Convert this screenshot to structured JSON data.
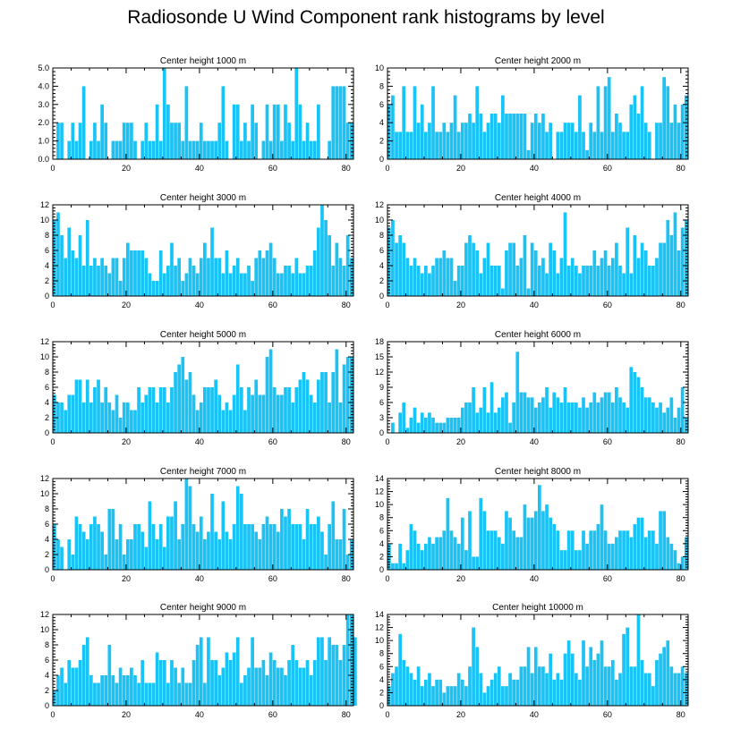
{
  "title": "Radiosonde U Wind Component rank histograms by level",
  "bar_color": "#19c3f5",
  "chart_data": [
    {
      "type": "bar",
      "title": "Center height 1000 m",
      "xlim": [
        0,
        82
      ],
      "ylim": [
        0,
        5
      ],
      "yticks": [
        0,
        1,
        2,
        3,
        4,
        5
      ],
      "ytick_labels": [
        "0.0",
        "1.0",
        "2.0",
        "3.0",
        "4.0",
        "5.0"
      ],
      "xticks": [
        0,
        20,
        40,
        60,
        80
      ],
      "values": [
        0,
        2,
        2,
        0,
        1,
        2,
        1,
        2,
        4,
        0,
        1,
        2,
        1,
        3,
        2,
        0,
        1,
        1,
        1,
        2,
        2,
        2,
        1,
        0,
        1,
        2,
        1,
        1,
        3,
        1,
        5,
        3,
        2,
        2,
        2,
        1,
        4,
        1,
        1,
        1,
        2,
        1,
        1,
        1,
        1,
        2,
        4,
        1,
        0,
        3,
        3,
        1,
        2,
        1,
        3,
        2,
        0,
        1,
        3,
        1,
        3,
        3,
        1,
        3,
        2,
        1,
        5,
        3,
        1,
        2,
        1,
        1,
        3,
        0,
        0,
        1,
        4,
        4,
        4,
        4,
        2,
        2
      ]
    },
    {
      "type": "bar",
      "title": "Center height 2000 m",
      "xlim": [
        0,
        82
      ],
      "ylim": [
        0,
        10
      ],
      "yticks": [
        0,
        2,
        4,
        6,
        8,
        10
      ],
      "ytick_labels": [
        "0",
        "2",
        "4",
        "6",
        "8",
        "10"
      ],
      "xticks": [
        0,
        20,
        40,
        60,
        80
      ],
      "values": [
        6,
        7,
        3,
        3,
        8,
        3,
        3,
        8,
        4,
        6,
        3,
        4,
        8,
        3,
        3,
        4,
        3,
        4,
        7,
        3,
        4,
        4,
        5,
        4,
        8,
        5,
        3,
        4,
        5,
        5,
        4,
        7,
        5,
        5,
        5,
        5,
        5,
        5,
        1,
        4,
        5,
        4,
        5,
        3,
        4,
        0,
        3,
        3,
        4,
        4,
        4,
        3,
        7,
        3,
        1,
        4,
        3,
        8,
        3,
        8,
        9,
        3,
        5,
        4,
        3,
        3,
        6,
        7,
        5,
        8,
        4,
        3,
        0,
        4,
        4,
        9,
        8,
        4,
        6,
        4,
        6,
        7
      ]
    },
    {
      "type": "bar",
      "title": "Center height 3000 m",
      "xlim": [
        0,
        82
      ],
      "ylim": [
        0,
        12
      ],
      "yticks": [
        0,
        2,
        4,
        6,
        8,
        10,
        12
      ],
      "ytick_labels": [
        "0",
        "2",
        "4",
        "6",
        "8",
        "10",
        "12"
      ],
      "xticks": [
        0,
        20,
        40,
        60,
        80
      ],
      "values": [
        10,
        11,
        8,
        5,
        9,
        6,
        5,
        8,
        4,
        10,
        4,
        5,
        4,
        5,
        4,
        3,
        5,
        5,
        2,
        5,
        7,
        6,
        6,
        6,
        6,
        5,
        3,
        2,
        2,
        6,
        3,
        4,
        7,
        4,
        5,
        2,
        3,
        5,
        4,
        3,
        5,
        7,
        5,
        9,
        5,
        5,
        3,
        6,
        3,
        4,
        5,
        3,
        3,
        4,
        2,
        5,
        6,
        5,
        6,
        7,
        5,
        3,
        3,
        4,
        4,
        3,
        5,
        3,
        3,
        4,
        4,
        6,
        9,
        12,
        10,
        8,
        4,
        7,
        5,
        4,
        8,
        5
      ]
    },
    {
      "type": "bar",
      "title": "Center height 4000 m",
      "xlim": [
        0,
        82
      ],
      "ylim": [
        0,
        12
      ],
      "yticks": [
        0,
        2,
        4,
        6,
        8,
        10,
        12
      ],
      "ytick_labels": [
        "0",
        "2",
        "4",
        "6",
        "8",
        "10",
        "12"
      ],
      "xticks": [
        0,
        20,
        40,
        60,
        80
      ],
      "values": [
        9,
        10,
        7,
        8,
        7,
        5,
        4,
        5,
        4,
        3,
        4,
        3,
        4,
        5,
        5,
        6,
        5,
        5,
        2,
        4,
        4,
        7,
        8,
        7,
        6,
        3,
        5,
        7,
        4,
        4,
        4,
        1,
        6,
        7,
        7,
        4,
        5,
        8,
        1,
        7,
        6,
        4,
        5,
        3,
        7,
        6,
        3,
        5,
        11,
        4,
        5,
        4,
        3,
        4,
        4,
        4,
        6,
        4,
        5,
        6,
        4,
        5,
        7,
        4,
        3,
        9,
        3,
        8,
        5,
        7,
        6,
        4,
        4,
        5,
        7,
        7,
        10,
        8,
        11,
        6,
        9,
        10
      ]
    },
    {
      "type": "bar",
      "title": "Center height 5000 m",
      "xlim": [
        0,
        82
      ],
      "ylim": [
        0,
        12
      ],
      "yticks": [
        0,
        2,
        4,
        6,
        8,
        10,
        12
      ],
      "ytick_labels": [
        "0",
        "2",
        "4",
        "6",
        "8",
        "10",
        "12"
      ],
      "xticks": [
        0,
        20,
        40,
        60,
        80
      ],
      "values": [
        5,
        4,
        4,
        3,
        5,
        5,
        7,
        7,
        4,
        7,
        4,
        6,
        7,
        4,
        6,
        4,
        3,
        5,
        2,
        4,
        4,
        3,
        3,
        6,
        4,
        5,
        6,
        6,
        4,
        6,
        6,
        4,
        6,
        8,
        9,
        10,
        7,
        8,
        5,
        3,
        4,
        6,
        6,
        6,
        7,
        5,
        3,
        4,
        3,
        5,
        9,
        6,
        3,
        6,
        5,
        7,
        5,
        5,
        10,
        11,
        6,
        5,
        5,
        6,
        6,
        4,
        6,
        7,
        8,
        7,
        5,
        4,
        7,
        8,
        8,
        4,
        8,
        11,
        4,
        9,
        10,
        10
      ]
    },
    {
      "type": "bar",
      "title": "Center height 6000 m",
      "xlim": [
        0,
        82
      ],
      "ylim": [
        0,
        18
      ],
      "yticks": [
        0,
        3,
        6,
        9,
        12,
        15,
        18
      ],
      "ytick_labels": [
        "0",
        "3",
        "6",
        "9",
        "12",
        "15",
        "18"
      ],
      "xticks": [
        0,
        20,
        40,
        60,
        80
      ],
      "values": [
        0,
        2,
        0,
        4,
        6,
        1,
        3,
        5,
        2,
        4,
        3,
        4,
        3,
        2,
        2,
        2,
        3,
        3,
        3,
        3,
        5,
        6,
        6,
        9,
        4,
        5,
        9,
        4,
        10,
        4,
        5,
        7,
        8,
        2,
        6,
        16,
        8,
        8,
        7,
        7,
        5,
        6,
        7,
        9,
        5,
        8,
        7,
        6,
        9,
        6,
        6,
        6,
        5,
        7,
        5,
        6,
        8,
        6,
        7,
        8,
        8,
        6,
        9,
        7,
        6,
        5,
        13,
        12,
        11,
        9,
        7,
        7,
        6,
        5,
        6,
        4,
        5,
        7,
        3,
        5,
        9,
        3
      ]
    },
    {
      "type": "bar",
      "title": "Center height 7000 m",
      "xlim": [
        0,
        82
      ],
      "ylim": [
        0,
        12
      ],
      "yticks": [
        0,
        2,
        4,
        6,
        8,
        10,
        12
      ],
      "ytick_labels": [
        "0",
        "2",
        "4",
        "6",
        "8",
        "10",
        "12"
      ],
      "xticks": [
        0,
        20,
        40,
        60,
        80
      ],
      "values": [
        6,
        4,
        3,
        0,
        4,
        2,
        7,
        6,
        5,
        4,
        6,
        7,
        6,
        5,
        2,
        8,
        8,
        4,
        6,
        2,
        4,
        4,
        6,
        6,
        5,
        3,
        9,
        6,
        4,
        6,
        3,
        7,
        7,
        9,
        4,
        6,
        12,
        11,
        6,
        5,
        7,
        4,
        5,
        10,
        5,
        4,
        9,
        5,
        4,
        6,
        11,
        10,
        6,
        6,
        6,
        5,
        4,
        6,
        7,
        6,
        6,
        5,
        8,
        7,
        8,
        6,
        6,
        6,
        4,
        8,
        6,
        6,
        7,
        5,
        2,
        6,
        9,
        4,
        4,
        8,
        2,
        4
      ]
    },
    {
      "type": "bar",
      "title": "Center height 8000 m",
      "xlim": [
        0,
        82
      ],
      "ylim": [
        0,
        14
      ],
      "yticks": [
        0,
        2,
        4,
        6,
        8,
        10,
        12,
        14
      ],
      "ytick_labels": [
        "0",
        "2",
        "4",
        "6",
        "8",
        "10",
        "12",
        "14"
      ],
      "xticks": [
        0,
        20,
        40,
        60,
        80
      ],
      "values": [
        4,
        1,
        1,
        4,
        1,
        3,
        7,
        6,
        4,
        3,
        4,
        5,
        4,
        5,
        5,
        6,
        11,
        6,
        5,
        4,
        8,
        3,
        9,
        2,
        2,
        11,
        9,
        6,
        6,
        6,
        5,
        4,
        9,
        8,
        6,
        5,
        5,
        10,
        8,
        8,
        9,
        13,
        9,
        10,
        8,
        7,
        6,
        3,
        3,
        6,
        6,
        3,
        3,
        6,
        4,
        6,
        6,
        7,
        10,
        6,
        4,
        4,
        5,
        6,
        6,
        6,
        5,
        7,
        8,
        8,
        5,
        6,
        6,
        4,
        9,
        9,
        5,
        4,
        3,
        1,
        2,
        5
      ]
    },
    {
      "type": "bar",
      "title": "Center height 9000 m",
      "xlim": [
        0,
        82
      ],
      "ylim": [
        0,
        12
      ],
      "yticks": [
        0,
        2,
        4,
        6,
        8,
        10,
        12
      ],
      "ytick_labels": [
        "0",
        "2",
        "4",
        "6",
        "8",
        "10",
        "12"
      ],
      "xticks": [
        0,
        20,
        40,
        60,
        80
      ],
      "values": [
        2,
        4,
        5,
        3,
        6,
        5,
        5,
        6,
        8,
        9,
        4,
        3,
        3,
        4,
        4,
        8,
        4,
        3,
        5,
        4,
        4,
        5,
        4,
        3,
        6,
        3,
        3,
        3,
        7,
        6,
        6,
        3,
        6,
        5,
        3,
        5,
        3,
        3,
        6,
        8,
        9,
        3,
        9,
        6,
        6,
        4,
        5,
        7,
        6,
        7,
        9,
        3,
        4,
        5,
        9,
        5,
        5,
        6,
        4,
        7,
        6,
        5,
        5,
        4,
        6,
        8,
        6,
        5,
        5,
        6,
        4,
        6,
        9,
        9,
        6,
        9,
        8,
        8,
        6,
        8,
        12,
        12,
        9
      ]
    },
    {
      "type": "bar",
      "title": "Center height 10000 m",
      "xlim": [
        0,
        82
      ],
      "ylim": [
        0,
        14
      ],
      "yticks": [
        0,
        2,
        4,
        6,
        8,
        10,
        12,
        14
      ],
      "ytick_labels": [
        "0",
        "2",
        "4",
        "6",
        "8",
        "10",
        "12",
        "14"
      ],
      "xticks": [
        0,
        20,
        40,
        60,
        80
      ],
      "values": [
        3,
        5,
        6,
        11,
        7,
        6,
        5,
        4,
        6,
        3,
        4,
        5,
        3,
        4,
        4,
        2,
        3,
        3,
        3,
        5,
        4,
        3,
        6,
        12,
        9,
        5,
        2,
        3,
        4,
        5,
        6,
        3,
        3,
        5,
        4,
        4,
        6,
        6,
        9,
        5,
        9,
        6,
        6,
        5,
        8,
        4,
        5,
        4,
        8,
        10,
        8,
        5,
        4,
        10,
        6,
        9,
        7,
        8,
        10,
        6,
        6,
        7,
        4,
        5,
        11,
        12,
        6,
        6,
        14,
        7,
        5,
        5,
        3,
        7,
        8,
        9,
        10,
        6,
        5,
        5,
        6,
        5
      ]
    }
  ]
}
